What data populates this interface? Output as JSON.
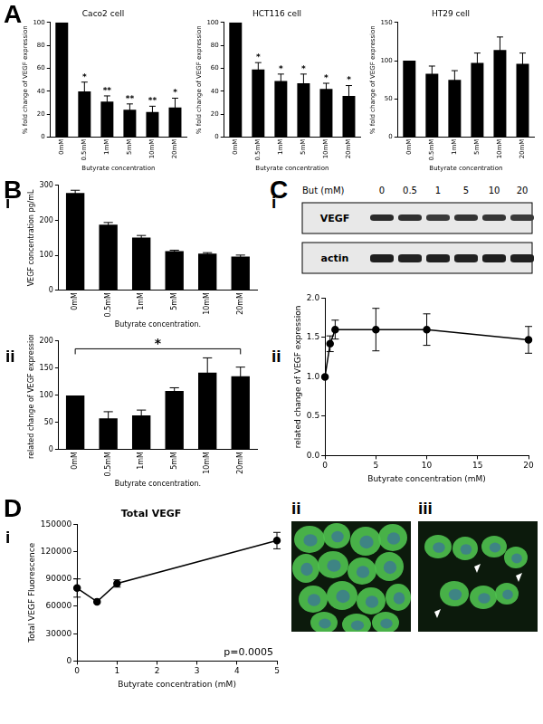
{
  "chart_data": [
    {
      "type": "bar",
      "title": "Caco2 cell",
      "xlabel": "Butyrate concentration",
      "ylabel": "% fold change of VEGF expression",
      "categories": [
        "0mM",
        "0.5mM",
        "1mM",
        "5mM",
        "10mM",
        "20mM"
      ],
      "values": [
        100,
        40,
        31,
        24,
        22,
        26
      ],
      "errors": [
        null,
        8,
        5,
        5,
        5,
        8
      ],
      "color": "#000000",
      "ylim": [
        0,
        100
      ],
      "yticks": [
        0,
        20,
        40,
        60,
        80,
        100
      ],
      "grid": false,
      "annotations": [
        {
          "text": "*",
          "at": "0.5mM"
        },
        {
          "text": "**",
          "at": "1mM"
        },
        {
          "text": "**",
          "at": "5mM"
        },
        {
          "text": "**",
          "at": "10mM"
        },
        {
          "text": "*",
          "at": "20mM"
        }
      ]
    },
    {
      "type": "bar",
      "title": "HCT116 cell",
      "xlabel": "Butyrate concentration",
      "ylabel": "% fold change of VEGF expression",
      "categories": [
        "0mM",
        "0.5mM",
        "1mM",
        "5mM",
        "10mM",
        "20mM"
      ],
      "values": [
        100,
        59,
        49,
        47,
        42,
        36
      ],
      "errors": [
        null,
        6,
        6,
        8,
        5,
        9
      ],
      "color": "#000000",
      "ylim": [
        0,
        100
      ],
      "yticks": [
        0,
        20,
        40,
        60,
        80,
        100
      ],
      "grid": false,
      "annotations": [
        {
          "text": "*",
          "at": "0.5mM"
        },
        {
          "text": "*",
          "at": "1mM"
        },
        {
          "text": "*",
          "at": "5mM"
        },
        {
          "text": "*",
          "at": "10mM"
        },
        {
          "text": "*",
          "at": "20mM"
        }
      ]
    },
    {
      "type": "bar",
      "title": "HT29 cell",
      "xlabel": "Butyrate concentration",
      "ylabel": "% fold change of VEGF expression",
      "categories": [
        "0mM",
        "0.5mM",
        "1mM",
        "5mM",
        "10mM",
        "20mM"
      ],
      "values": [
        100,
        83,
        75,
        97,
        114,
        96
      ],
      "errors": [
        null,
        10,
        12,
        13,
        17,
        14
      ],
      "color": "#000000",
      "ylim": [
        0,
        150
      ],
      "yticks": [
        0,
        50,
        100,
        150
      ],
      "grid": false
    },
    {
      "type": "bar",
      "xlabel": "Butyrate concentration.",
      "ylabel": "VEGF concentration pg/mL",
      "categories": [
        "0mM",
        "0.5mM",
        "1mM",
        "5mM",
        "10mM",
        "20mM"
      ],
      "values": [
        278,
        188,
        151,
        112,
        105,
        97
      ],
      "errors": [
        8,
        6,
        6,
        3,
        3,
        4
      ],
      "color": "#000000",
      "ylim": [
        0,
        300
      ],
      "yticks": [
        0,
        100,
        200,
        300
      ],
      "grid": false
    },
    {
      "type": "bar",
      "xlabel": "Butyrate concentration.",
      "ylabel": "related change of VEGF expression",
      "categories": [
        "0mM",
        "0.5mM",
        "1mM",
        "5mM",
        "10mM",
        "20mM"
      ],
      "values": [
        100,
        58,
        63,
        108,
        142,
        135
      ],
      "errors": [
        null,
        12,
        10,
        6,
        27,
        17
      ],
      "color": "#000000",
      "ylim": [
        0,
        200
      ],
      "yticks": [
        0,
        50,
        100,
        150,
        200
      ],
      "grid": false,
      "annotations": [
        {
          "text": "*",
          "from": "0mM",
          "to": "20mM"
        }
      ]
    },
    {
      "type": "line",
      "xlabel": "Butyrate concentration (mM)",
      "ylabel": "related change of VEGF expression",
      "x": [
        0,
        0.5,
        1,
        5,
        10,
        20
      ],
      "values": [
        1.0,
        1.42,
        1.6,
        1.6,
        1.6,
        1.47
      ],
      "errors": [
        null,
        0.1,
        0.12,
        0.27,
        0.2,
        0.17
      ],
      "color": "#000000",
      "marker": "circle",
      "xlim": [
        0,
        20
      ],
      "xticks": [
        0,
        5,
        10,
        15,
        20
      ],
      "ylim": [
        0,
        2
      ],
      "yticks": [
        {
          "value": 0,
          "label": "0.0"
        },
        {
          "value": 0.5,
          "label": "0.5"
        },
        {
          "value": 1,
          "label": "1.0"
        },
        {
          "value": 1.5,
          "label": "1.5"
        },
        {
          "value": 2,
          "label": "2.0"
        }
      ],
      "grid": false
    },
    {
      "type": "line",
      "title": "Total VEGF",
      "xlabel": "Butyrate concentration (mM)",
      "ylabel": "Total VEGF Fluorescence",
      "x": [
        0,
        0.5,
        1,
        5
      ],
      "values": [
        80000,
        65000,
        85000,
        132000
      ],
      "errors": [
        10000,
        null,
        4000,
        9000
      ],
      "color": "#000000",
      "marker": "circle",
      "xlim": [
        0,
        5
      ],
      "xticks": [
        0,
        1,
        2,
        3,
        4,
        5
      ],
      "ylim": [
        0,
        150000
      ],
      "yticks": [
        0,
        30000,
        60000,
        90000,
        120000,
        150000
      ],
      "grid": false,
      "annotations": [
        {
          "text": "p=0.0005"
        }
      ]
    }
  ],
  "panel_labels": [
    "A",
    "B",
    "i",
    "ii",
    "C",
    "i",
    "ii",
    "D",
    "i",
    "ii",
    "iii"
  ],
  "blot": {
    "header": "But (mM)",
    "lanes": [
      "0",
      "0.5",
      "1",
      "5",
      "10",
      "20"
    ],
    "rows": [
      "VEGF",
      "actin"
    ]
  }
}
